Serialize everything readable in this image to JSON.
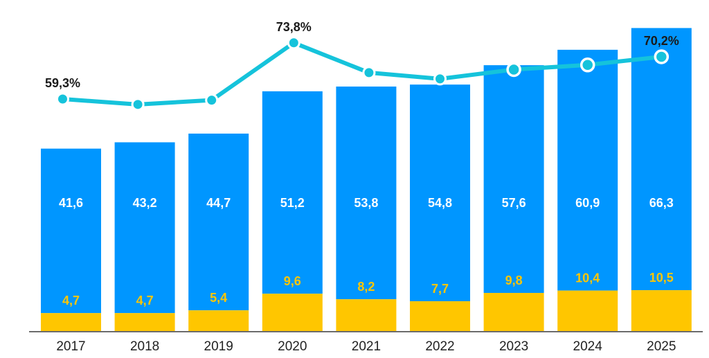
{
  "chart_data": {
    "type": "bar",
    "stacked": true,
    "title": "",
    "xlabel": "",
    "ylabel": "",
    "categories": [
      "2017",
      "2018",
      "2019",
      "2020",
      "2021",
      "2022",
      "2023",
      "2024",
      "2025"
    ],
    "series": [
      {
        "name": "yellow",
        "color": "#FFC600",
        "values": [
          4.7,
          4.7,
          5.4,
          9.6,
          8.2,
          7.7,
          9.8,
          10.4,
          10.5
        ],
        "labels": [
          "4,7",
          "4,7",
          "5,4",
          "9,6",
          "8,2",
          "7,7",
          "9,8",
          "10,4",
          "10,5"
        ]
      },
      {
        "name": "blue",
        "color": "#0096FF",
        "values": [
          41.6,
          43.2,
          44.7,
          51.2,
          53.8,
          54.8,
          57.6,
          60.9,
          66.3
        ],
        "labels": [
          "41,6",
          "43,2",
          "44,7",
          "51,2",
          "53,8",
          "54,8",
          "57,6",
          "60,9",
          "66,3"
        ]
      }
    ],
    "line": {
      "type": "line",
      "color": "#15C3DB",
      "unit": "%",
      "values": [
        59.3,
        57.9,
        59.0,
        73.8,
        66.1,
        64.5,
        66.9,
        68.1,
        70.2
      ],
      "labels": [
        "59,3%",
        "",
        "",
        "73,8%",
        "",
        "",
        "",
        "",
        "70,2%"
      ],
      "hollow_markers_from_index": 6
    },
    "grid": false,
    "legend": "none"
  }
}
